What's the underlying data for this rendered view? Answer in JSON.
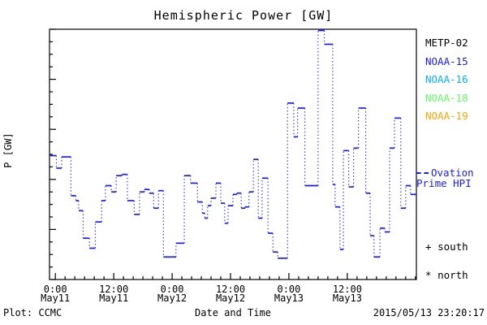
{
  "title": "Hemispheric Power [GW]",
  "y_axis_title": "P [GW]",
  "footer": {
    "plot_credit": "Plot: CCMC",
    "x_axis_caption": "Date and Time",
    "timestamp": "2015/05/13 23:20:17"
  },
  "legend": {
    "satellites": [
      {
        "label": "METP-02",
        "color": "#000000"
      },
      {
        "label": "NOAA-15",
        "color": "#1a1aff"
      },
      {
        "label": "NOAA-16",
        "color": "#00b0ff"
      },
      {
        "label": "NOAA-18",
        "color": "#5fff5f"
      },
      {
        "label": "NOAA-19",
        "color": "#ffa500"
      }
    ],
    "line_sample": {
      "label_line1": "Ovation",
      "label_line2": "Prime HPI",
      "color": "#1a1aff"
    },
    "marker_south": {
      "symbol": "+",
      "label": "south"
    },
    "marker_north": {
      "symbol": "*",
      "label": "north"
    }
  },
  "chart_data": {
    "type": "line",
    "step": true,
    "style": "solid horizontal steps joined by dotted verticals",
    "color": "#1a1aff",
    "title": "Hemispheric Power [GW]",
    "xlabel": "Date and Time",
    "ylabel": "P [GW]",
    "ylim": [
      0,
      100
    ],
    "y_major_ticks": [
      0,
      20,
      40,
      60,
      80,
      100
    ],
    "y_minor_step": 5,
    "x_hours_range": [
      -1.2,
      74.2
    ],
    "x_hours_origin_label": "0:00 May11",
    "x_minor_step_hours": 2,
    "x_major_ticks": [
      {
        "t": 0,
        "time": "0:00",
        "date": "May11"
      },
      {
        "t": 12,
        "time": "12:00",
        "date": "May11"
      },
      {
        "t": 24,
        "time": "0:00",
        "date": "May12"
      },
      {
        "t": 36,
        "time": "12:00",
        "date": "May12"
      },
      {
        "t": 48,
        "time": "0:00",
        "date": "May13"
      },
      {
        "t": 60,
        "time": "12:00",
        "date": "May13"
      }
    ],
    "grid": false,
    "legend_position": "right-outside",
    "series": [
      {
        "name": "Ovation Prime HPI",
        "units": "GW",
        "points_t_hours_vs_gw": [
          [
            -1.2,
            49.5
          ],
          [
            0.2,
            44.5
          ],
          [
            1.3,
            49.0
          ],
          [
            3.2,
            33.5
          ],
          [
            4.2,
            31.5
          ],
          [
            4.8,
            27.5
          ],
          [
            5.7,
            16.5
          ],
          [
            7.0,
            12.5
          ],
          [
            8.2,
            23.0
          ],
          [
            9.5,
            31.5
          ],
          [
            10.3,
            37.5
          ],
          [
            11.5,
            35.0
          ],
          [
            12.5,
            41.5
          ],
          [
            13.7,
            42.0
          ],
          [
            14.8,
            31.5
          ],
          [
            16.2,
            26.0
          ],
          [
            17.3,
            35.0
          ],
          [
            18.3,
            36.0
          ],
          [
            19.3,
            34.5
          ],
          [
            20.2,
            28.5
          ],
          [
            21.2,
            35.5
          ],
          [
            22.2,
            9.0
          ],
          [
            24.8,
            14.5
          ],
          [
            26.5,
            41.5
          ],
          [
            27.8,
            38.5
          ],
          [
            29.2,
            31.0
          ],
          [
            30.2,
            26.5
          ],
          [
            30.7,
            24.5
          ],
          [
            31.3,
            29.5
          ],
          [
            32.0,
            32.5
          ],
          [
            33.0,
            38.5
          ],
          [
            34.0,
            30.5
          ],
          [
            34.8,
            22.5
          ],
          [
            35.5,
            29.5
          ],
          [
            36.5,
            34.0
          ],
          [
            37.3,
            34.5
          ],
          [
            38.2,
            28.5
          ],
          [
            39.0,
            29.0
          ],
          [
            39.8,
            35.0
          ],
          [
            40.7,
            48.0
          ],
          [
            41.7,
            24.5
          ],
          [
            42.5,
            40.5
          ],
          [
            43.7,
            18.5
          ],
          [
            44.7,
            11.0
          ],
          [
            45.7,
            8.5
          ],
          [
            47.7,
            70.5
          ],
          [
            49.0,
            57.0
          ],
          [
            49.8,
            68.5
          ],
          [
            51.3,
            37.5
          ],
          [
            54.0,
            99.5
          ],
          [
            55.3,
            94.0
          ],
          [
            57.0,
            38.0
          ],
          [
            57.5,
            29.0
          ],
          [
            58.5,
            12.0
          ],
          [
            59.2,
            51.5
          ],
          [
            60.3,
            37.0
          ],
          [
            61.3,
            52.5
          ],
          [
            62.3,
            68.5
          ],
          [
            63.8,
            34.5
          ],
          [
            64.7,
            17.5
          ],
          [
            65.5,
            9.0
          ],
          [
            66.7,
            20.5
          ],
          [
            67.7,
            19.0
          ],
          [
            68.7,
            52.5
          ],
          [
            69.7,
            64.5
          ],
          [
            71.0,
            28.5
          ],
          [
            72.0,
            37.5
          ],
          [
            73.0,
            34.0
          ]
        ]
      }
    ]
  }
}
